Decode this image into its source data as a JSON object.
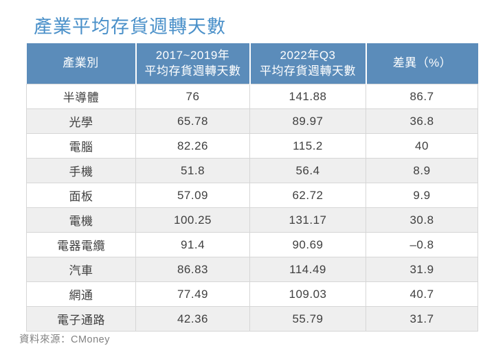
{
  "title": "產業平均存貨週轉天數",
  "source": "資料來源：CMoney",
  "colors": {
    "title_text": "#4a90c9",
    "header_bg": "#5b8cba",
    "header_text": "#ffffff",
    "row_alt_bg": "#efefef",
    "cell_border": "#d6d6d6",
    "cell_text": "#3f3f3f",
    "source_text": "#828282"
  },
  "table": {
    "headers": [
      {
        "line1": "產業別",
        "line2": ""
      },
      {
        "line1": "2017~2019年",
        "line2": "平均存貨週轉天數"
      },
      {
        "line1": "2022年Q3",
        "line2": "平均存貨週轉天數"
      },
      {
        "line1": "差異（%）",
        "line2": ""
      }
    ],
    "rows": [
      {
        "cells": [
          "半導體",
          "76",
          "141.88",
          "86.7"
        ]
      },
      {
        "cells": [
          "光學",
          "65.78",
          "89.97",
          "36.8"
        ]
      },
      {
        "cells": [
          "電腦",
          "82.26",
          "115.2",
          "40"
        ]
      },
      {
        "cells": [
          "手機",
          "51.8",
          "56.4",
          "8.9"
        ]
      },
      {
        "cells": [
          "面板",
          "57.09",
          "62.72",
          "9.9"
        ]
      },
      {
        "cells": [
          "電機",
          "100.25",
          "131.17",
          "30.8"
        ]
      },
      {
        "cells": [
          "電器電纜",
          "91.4",
          "90.69",
          "–0.8"
        ]
      },
      {
        "cells": [
          "汽車",
          "86.83",
          "114.49",
          "31.9"
        ]
      },
      {
        "cells": [
          "網通",
          "77.49",
          "109.03",
          "40.7"
        ]
      },
      {
        "cells": [
          "電子通路",
          "42.36",
          "55.79",
          "31.7"
        ]
      }
    ]
  },
  "chart_data": {
    "type": "table",
    "title": "產業平均存貨週轉天數",
    "categories": [
      "半導體",
      "光學",
      "電腦",
      "手機",
      "面板",
      "電機",
      "電器電纜",
      "汽車",
      "網通",
      "電子通路"
    ],
    "series": [
      {
        "name": "2017~2019年平均存貨週轉天數",
        "values": [
          76,
          65.78,
          82.26,
          51.8,
          57.09,
          100.25,
          91.4,
          86.83,
          77.49,
          42.36
        ]
      },
      {
        "name": "2022年Q3平均存貨週轉天數",
        "values": [
          141.88,
          89.97,
          115.2,
          56.4,
          62.72,
          131.17,
          90.69,
          114.49,
          109.03,
          55.79
        ]
      },
      {
        "name": "差異（%）",
        "values": [
          86.7,
          36.8,
          40,
          8.9,
          9.9,
          30.8,
          -0.8,
          31.9,
          40.7,
          31.7
        ]
      }
    ],
    "source": "資料來源：CMoney"
  }
}
